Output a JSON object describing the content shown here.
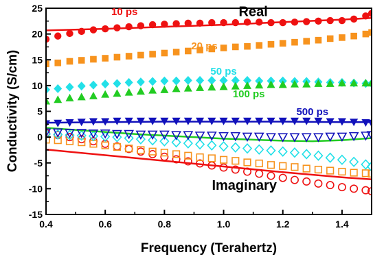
{
  "chart_data": {
    "type": "scatter",
    "xlabel": "Frequency (Terahertz)",
    "ylabel": "Conductivity (S/cm)",
    "xlim": [
      0.4,
      1.5
    ],
    "ylim": [
      -15,
      25
    ],
    "xticks": [
      0.4,
      0.6,
      0.8,
      1.0,
      1.2,
      1.4
    ],
    "xtick_labels": [
      "0.4",
      "0.6",
      "0.8",
      "1.0",
      "1.2",
      "1.4"
    ],
    "yticks": [
      -15,
      -10,
      -5,
      0,
      5,
      10,
      15,
      20,
      25
    ],
    "ytick_labels": [
      "-15",
      "-10",
      "-5",
      "0",
      "5",
      "10",
      "15",
      "20",
      "25"
    ],
    "grid": false,
    "legend": "none",
    "annotations": [
      {
        "text": "Real",
        "x": 1.1,
        "y": 23.5,
        "color": "#000000",
        "size": 20
      },
      {
        "text": "Imaginary",
        "x": 1.07,
        "y": -10.2,
        "color": "#000000",
        "size": 20
      },
      {
        "text": "10 ps",
        "x": 0.665,
        "y": 23.7,
        "color": "#ee1111",
        "size": 15
      },
      {
        "text": "20 ps",
        "x": 0.935,
        "y": 17.0,
        "color": "#f7931e",
        "size": 15
      },
      {
        "text": "50 ps",
        "x": 1.0,
        "y": 12.1,
        "color": "#22e0e8",
        "size": 15
      },
      {
        "text": "100 ps",
        "x": 1.085,
        "y": 7.7,
        "color": "#22cc22",
        "size": 15
      },
      {
        "text": "500 ps",
        "x": 1.3,
        "y": 4.3,
        "color": "#1111bb",
        "size": 15
      }
    ],
    "series": [
      {
        "group": "10 ps",
        "part": "real",
        "kind": "markers",
        "marker": "circle",
        "filled": true,
        "color": "#ee1111",
        "x": [
          0.4,
          0.44,
          0.48,
          0.52,
          0.56,
          0.6,
          0.64,
          0.68,
          0.72,
          0.76,
          0.8,
          0.84,
          0.88,
          0.92,
          0.96,
          1.0,
          1.04,
          1.08,
          1.12,
          1.16,
          1.2,
          1.24,
          1.28,
          1.32,
          1.36,
          1.4,
          1.44,
          1.48,
          1.5
        ],
        "y": [
          19.0,
          19.6,
          20.1,
          20.5,
          20.8,
          21.0,
          21.2,
          21.4,
          21.6,
          21.8,
          21.9,
          22.0,
          22.1,
          22.1,
          22.2,
          22.2,
          22.2,
          22.3,
          22.3,
          22.2,
          22.2,
          22.3,
          22.4,
          22.5,
          22.6,
          22.6,
          22.9,
          23.5,
          24.0
        ]
      },
      {
        "group": "10 ps",
        "part": "real",
        "kind": "line",
        "color": "#ee1111",
        "x": [
          0.4,
          0.6,
          0.8,
          1.0,
          1.2,
          1.4,
          1.5
        ],
        "y": [
          20.7,
          21.0,
          21.4,
          21.8,
          22.3,
          22.8,
          23.1
        ]
      },
      {
        "group": "20 ps",
        "part": "real",
        "kind": "markers",
        "marker": "square",
        "filled": true,
        "color": "#f7931e",
        "x": [
          0.4,
          0.44,
          0.48,
          0.52,
          0.56,
          0.6,
          0.64,
          0.68,
          0.72,
          0.76,
          0.8,
          0.84,
          0.88,
          0.92,
          0.96,
          1.0,
          1.04,
          1.08,
          1.12,
          1.16,
          1.2,
          1.24,
          1.28,
          1.32,
          1.36,
          1.4,
          1.44,
          1.48,
          1.5
        ],
        "y": [
          14.2,
          14.4,
          14.7,
          14.9,
          15.1,
          15.3,
          15.5,
          15.7,
          15.9,
          16.1,
          16.3,
          16.5,
          16.7,
          16.9,
          17.1,
          17.3,
          17.5,
          17.6,
          17.8,
          18.0,
          18.2,
          18.4,
          18.6,
          18.8,
          19.1,
          19.3,
          19.6,
          20.0,
          20.3
        ]
      },
      {
        "group": "50 ps",
        "part": "real",
        "kind": "markers",
        "marker": "diamond",
        "filled": true,
        "color": "#22e0e8",
        "x": [
          0.4,
          0.44,
          0.48,
          0.52,
          0.56,
          0.6,
          0.64,
          0.68,
          0.72,
          0.76,
          0.8,
          0.84,
          0.88,
          0.92,
          0.96,
          1.0,
          1.04,
          1.08,
          1.12,
          1.16,
          1.2,
          1.24,
          1.28,
          1.32,
          1.36,
          1.4,
          1.44,
          1.48,
          1.5
        ],
        "y": [
          9.2,
          9.4,
          9.7,
          9.9,
          10.1,
          10.3,
          10.4,
          10.6,
          10.7,
          10.8,
          10.9,
          10.9,
          11.0,
          11.0,
          11.0,
          11.0,
          11.0,
          11.0,
          10.9,
          10.9,
          10.9,
          10.8,
          10.8,
          10.7,
          10.6,
          10.6,
          10.5,
          10.4,
          10.4
        ]
      },
      {
        "group": "100 ps",
        "part": "real",
        "kind": "markers",
        "marker": "triangle-up",
        "filled": true,
        "color": "#22cc22",
        "x": [
          0.4,
          0.44,
          0.48,
          0.52,
          0.56,
          0.6,
          0.64,
          0.68,
          0.72,
          0.76,
          0.8,
          0.84,
          0.88,
          0.92,
          0.96,
          1.0,
          1.04,
          1.08,
          1.12,
          1.16,
          1.2,
          1.24,
          1.28,
          1.32,
          1.36,
          1.4,
          1.44,
          1.48,
          1.5
        ],
        "y": [
          7.0,
          7.3,
          7.6,
          7.8,
          8.0,
          8.3,
          8.5,
          8.7,
          8.9,
          9.1,
          9.2,
          9.4,
          9.5,
          9.6,
          9.7,
          9.8,
          9.9,
          10.0,
          10.1,
          10.2,
          10.2,
          10.3,
          10.3,
          10.4,
          10.4,
          10.5,
          10.5,
          10.5,
          10.5
        ]
      },
      {
        "group": "500 ps",
        "part": "real",
        "kind": "markers",
        "marker": "triangle-down",
        "filled": true,
        "color": "#1111bb",
        "x": [
          0.4,
          0.44,
          0.48,
          0.52,
          0.56,
          0.6,
          0.64,
          0.68,
          0.72,
          0.76,
          0.8,
          0.84,
          0.88,
          0.92,
          0.96,
          1.0,
          1.04,
          1.08,
          1.12,
          1.16,
          1.2,
          1.24,
          1.28,
          1.32,
          1.36,
          1.4,
          1.44,
          1.48,
          1.5
        ],
        "y": [
          2.6,
          2.7,
          2.8,
          2.9,
          3.0,
          3.0,
          3.1,
          3.1,
          3.1,
          3.1,
          3.1,
          3.1,
          3.1,
          3.1,
          3.1,
          3.1,
          3.1,
          3.1,
          3.1,
          3.1,
          3.1,
          3.1,
          3.1,
          3.1,
          3.0,
          3.0,
          2.9,
          2.8,
          2.7
        ]
      },
      {
        "group": "500 ps",
        "part": "real",
        "kind": "line",
        "color": "#1111bb",
        "x": [
          0.4,
          0.6,
          0.8,
          1.0,
          1.2,
          1.4,
          1.5
        ],
        "y": [
          2.8,
          2.9,
          3.0,
          3.0,
          3.0,
          2.9,
          2.9
        ]
      },
      {
        "group": "10 ps",
        "part": "imaginary",
        "kind": "markers",
        "marker": "circle",
        "filled": false,
        "color": "#ee1111",
        "x": [
          0.4,
          0.44,
          0.48,
          0.52,
          0.56,
          0.6,
          0.64,
          0.68,
          0.72,
          0.76,
          0.8,
          0.84,
          0.88,
          0.92,
          0.96,
          1.0,
          1.04,
          1.08,
          1.12,
          1.16,
          1.2,
          1.24,
          1.28,
          1.32,
          1.36,
          1.4,
          1.44,
          1.48,
          1.5
        ],
        "y": [
          0.8,
          0.4,
          0.0,
          -0.4,
          -0.8,
          -1.3,
          -1.8,
          -2.3,
          -2.8,
          -3.3,
          -3.8,
          -4.3,
          -4.7,
          -5.1,
          -5.5,
          -5.9,
          -6.3,
          -6.7,
          -7.1,
          -7.5,
          -7.9,
          -8.3,
          -8.6,
          -9.0,
          -9.3,
          -9.7,
          -10.0,
          -10.3,
          -10.5
        ]
      },
      {
        "group": "10 ps",
        "part": "imaginary",
        "kind": "line",
        "color": "#ee1111",
        "x": [
          0.4,
          0.6,
          0.8,
          1.0,
          1.2,
          1.4,
          1.5
        ],
        "y": [
          -2.4,
          -3.5,
          -4.6,
          -5.7,
          -6.8,
          -7.8,
          -8.2
        ]
      },
      {
        "group": "20 ps",
        "part": "imaginary",
        "kind": "markers",
        "marker": "square",
        "filled": false,
        "color": "#f7931e",
        "x": [
          0.4,
          0.44,
          0.48,
          0.52,
          0.56,
          0.6,
          0.64,
          0.68,
          0.72,
          0.76,
          0.8,
          0.84,
          0.88,
          0.92,
          0.96,
          1.0,
          1.04,
          1.08,
          1.12,
          1.16,
          1.2,
          1.24,
          1.28,
          1.32,
          1.36,
          1.4,
          1.44,
          1.48,
          1.5
        ],
        "y": [
          -0.5,
          -0.6,
          -0.8,
          -1.0,
          -1.3,
          -1.6,
          -1.9,
          -2.2,
          -2.5,
          -2.8,
          -3.0,
          -3.3,
          -3.6,
          -3.9,
          -4.1,
          -4.4,
          -4.6,
          -4.9,
          -5.1,
          -5.4,
          -5.6,
          -5.8,
          -6.1,
          -6.3,
          -6.5,
          -6.7,
          -6.9,
          -7.0,
          -7.1
        ]
      },
      {
        "group": "50 ps",
        "part": "imaginary",
        "kind": "markers",
        "marker": "diamond",
        "filled": false,
        "color": "#22e0e8",
        "x": [
          0.4,
          0.44,
          0.48,
          0.52,
          0.56,
          0.6,
          0.64,
          0.68,
          0.72,
          0.76,
          0.8,
          0.84,
          0.88,
          0.92,
          0.96,
          1.0,
          1.04,
          1.08,
          1.12,
          1.16,
          1.2,
          1.24,
          1.28,
          1.32,
          1.36,
          1.4,
          1.44,
          1.48,
          1.5
        ],
        "y": [
          0.6,
          0.5,
          0.4,
          0.3,
          0.2,
          0.1,
          0.0,
          -0.2,
          -0.4,
          -0.6,
          -0.8,
          -1.0,
          -1.2,
          -1.4,
          -1.6,
          -1.8,
          -2.0,
          -2.2,
          -2.4,
          -2.6,
          -2.8,
          -3.0,
          -3.3,
          -3.6,
          -4.0,
          -4.4,
          -4.8,
          -5.3,
          -5.7
        ]
      },
      {
        "group": "100 ps",
        "part": "imaginary",
        "kind": "line",
        "color": "#22cc22",
        "x": [
          0.4,
          0.5,
          0.6,
          0.7,
          0.8,
          0.9,
          1.0,
          1.1,
          1.2,
          1.3,
          1.4,
          1.5
        ],
        "y": [
          1.8,
          1.4,
          1.0,
          0.6,
          0.3,
          0.0,
          -0.3,
          -0.5,
          -0.7,
          -0.8,
          -0.6,
          -0.2
        ]
      },
      {
        "group": "500 ps",
        "part": "imaginary",
        "kind": "markers",
        "marker": "triangle-down",
        "filled": false,
        "color": "#1111bb",
        "x": [
          0.4,
          0.44,
          0.48,
          0.52,
          0.56,
          0.6,
          0.64,
          0.68,
          0.72,
          0.76,
          0.8,
          0.84,
          0.88,
          0.92,
          0.96,
          1.0,
          1.04,
          1.08,
          1.12,
          1.16,
          1.2,
          1.24,
          1.28,
          1.32,
          1.36,
          1.4,
          1.44,
          1.48,
          1.5
        ],
        "y": [
          0.9,
          0.9,
          0.8,
          0.8,
          0.7,
          0.7,
          0.6,
          0.6,
          0.5,
          0.5,
          0.5,
          0.4,
          0.4,
          0.3,
          0.3,
          0.2,
          0.2,
          0.1,
          0.1,
          0.0,
          0.0,
          0.0,
          0.0,
          0.0,
          0.1,
          0.1,
          0.2,
          0.3,
          0.4
        ]
      }
    ]
  }
}
